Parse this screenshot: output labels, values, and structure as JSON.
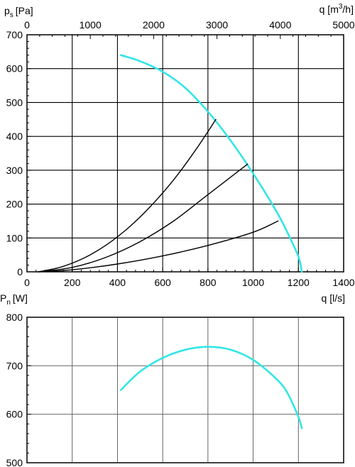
{
  "chart_data": [
    {
      "type": "line",
      "ylabel": "p",
      "ylabel_sub": "s",
      "ylabel_unit": "[Pa]",
      "xlabel": "q [l/s]",
      "x2label_prefix": "q [m",
      "x2label_sup": "3",
      "x2label_suffix": "/h]",
      "xlim": [
        0,
        1400
      ],
      "ylim": [
        0,
        700
      ],
      "x2lim": [
        0,
        5000
      ],
      "xticks": [
        "0",
        "200",
        "400",
        "600",
        "800",
        "1000",
        "1200",
        "1400"
      ],
      "yticks": [
        "0",
        "100",
        "200",
        "300",
        "400",
        "500",
        "600",
        "700"
      ],
      "x2ticks": [
        "0",
        "1000",
        "2000",
        "3000",
        "4000",
        "5000"
      ],
      "grid": true,
      "grid_x": [
        200,
        400,
        600,
        800,
        1000,
        1200
      ],
      "grid_y": [
        100,
        200,
        300,
        400,
        500,
        600
      ],
      "series": [
        {
          "kind": "fan-curve",
          "color": "#33e6e6",
          "x": [
            415,
            500,
            600,
            700,
            800,
            900,
            1000,
            1100,
            1150,
            1200,
            1215
          ],
          "y": [
            640,
            622,
            591,
            543,
            473,
            388,
            290,
            182,
            118,
            45,
            0
          ]
        },
        {
          "kind": "system-curve",
          "color": "#000000",
          "x": [
            50,
            150,
            250,
            350,
            450,
            550,
            650,
            750,
            835
          ],
          "y": [
            0,
            14,
            40,
            79,
            131,
            196,
            273,
            364,
            450
          ]
        },
        {
          "kind": "system-curve",
          "color": "#000000",
          "x": [
            50,
            200,
            350,
            500,
            650,
            800,
            975
          ],
          "y": [
            0,
            13,
            43,
            89,
            151,
            228,
            318
          ]
        },
        {
          "kind": "system-curve",
          "color": "#000000",
          "x": [
            50,
            200,
            400,
            600,
            800,
            1000,
            1110
          ],
          "y": [
            0,
            6,
            23,
            47,
            78,
            117,
            150
          ]
        }
      ]
    },
    {
      "type": "line",
      "ylabel": "P",
      "ylabel_sub": "n",
      "ylabel_unit": "[W]",
      "xlim": [
        0,
        1400
      ],
      "ylim": [
        500,
        800
      ],
      "yticks": [
        "500",
        "600",
        "700",
        "800"
      ],
      "grid": true,
      "grid_x": [
        200,
        400,
        600,
        800,
        1000,
        1200
      ],
      "grid_y": [
        600,
        700
      ],
      "series": [
        {
          "kind": "power-curve",
          "color": "#33e6e6",
          "x": [
            415,
            500,
            600,
            700,
            800,
            900,
            1000,
            1100,
            1150,
            1200,
            1215
          ],
          "y": [
            650,
            688,
            716,
            733,
            739,
            733,
            712,
            674,
            645,
            595,
            571
          ]
        }
      ]
    }
  ]
}
